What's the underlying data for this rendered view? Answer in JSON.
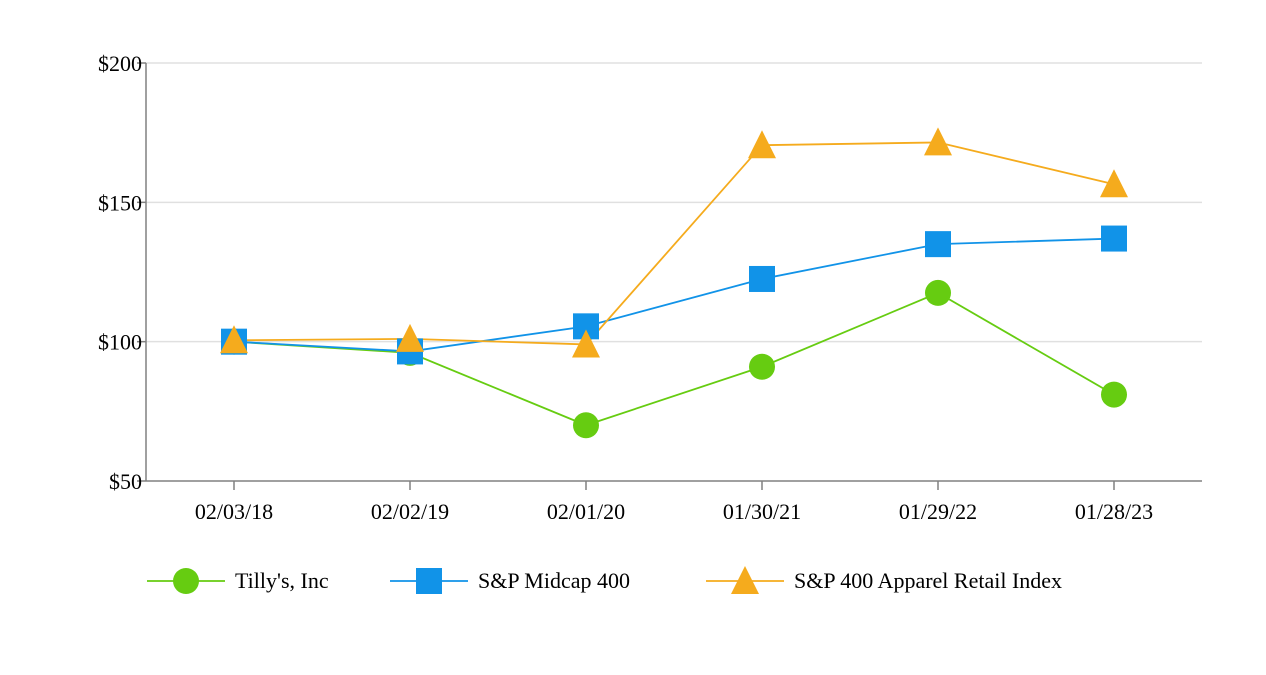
{
  "chart_data": {
    "type": "line",
    "title": "",
    "xlabel": "",
    "ylabel": "",
    "categories": [
      "02/03/18",
      "02/02/19",
      "02/01/20",
      "01/30/21",
      "01/29/22",
      "01/28/23"
    ],
    "ylim": [
      50,
      200
    ],
    "y_ticks": [
      50,
      100,
      150,
      200
    ],
    "y_tick_labels": [
      "$50",
      "$100",
      "$150",
      "$200"
    ],
    "grid": "horizontal",
    "legend_position": "bottom",
    "series": [
      {
        "name": "Tilly's, Inc",
        "marker": "circle",
        "color": "#66cc11",
        "values": [
          100,
          96,
          70,
          91,
          117.5,
          81
        ]
      },
      {
        "name": "S&P Midcap 400",
        "marker": "square",
        "color": "#1193e8",
        "values": [
          100,
          96.5,
          105.5,
          122.5,
          135,
          137
        ]
      },
      {
        "name": "S&P 400 Apparel Retail Index",
        "marker": "triangle",
        "color": "#f5ab1d",
        "values": [
          100.5,
          101,
          99,
          170.5,
          171.5,
          156.5
        ]
      }
    ],
    "colors": {
      "axis": "#808080",
      "grid": "#e0e0e0"
    }
  }
}
